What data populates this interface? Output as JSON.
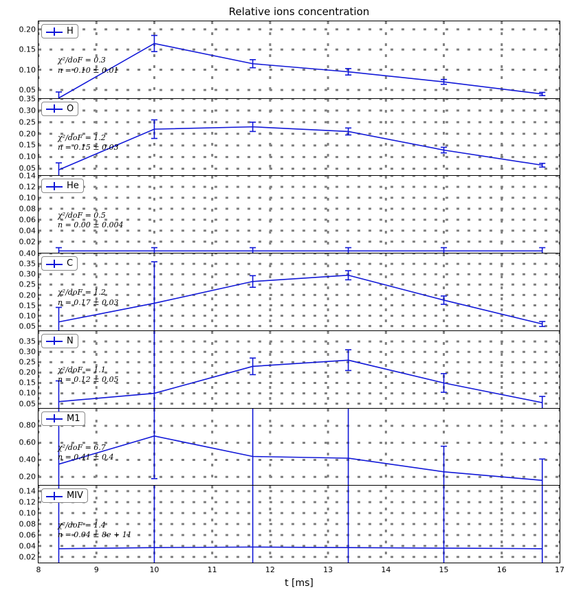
{
  "title": "Relative ions concentration",
  "title_fontsize": 15,
  "xaxis_label": "t [ms]",
  "xaxis_fontsize": 14,
  "font_family": "DejaVu Serif",
  "background_color": "#ffffff",
  "line_color": "#1118d8",
  "grid_color": "#808080",
  "grid_dash": "2 3",
  "line_width": 1.6,
  "xlim": [
    8,
    17
  ],
  "xticks": [
    8,
    9,
    10,
    11,
    12,
    13,
    14,
    15,
    16,
    17
  ],
  "x_values": [
    8.35,
    10.0,
    11.7,
    13.35,
    15.0,
    16.7
  ],
  "panels": [
    {
      "label": "H",
      "ylim": [
        0.03,
        0.22
      ],
      "yticks": [
        0.05,
        0.1,
        0.15,
        0.2
      ],
      "y": [
        0.03,
        0.165,
        0.115,
        0.095,
        0.07,
        0.04
      ],
      "yerr": [
        0.015,
        0.02,
        0.01,
        0.008,
        0.006,
        0.004
      ],
      "annot1": "χ²/doF = 0.3",
      "annot2": "n = 0.10 ± 0.01"
    },
    {
      "label": "O",
      "ylim": [
        0.02,
        0.35
      ],
      "yticks": [
        0.05,
        0.1,
        0.15,
        0.2,
        0.25,
        0.3,
        0.35
      ],
      "y": [
        0.045,
        0.22,
        0.23,
        0.21,
        0.13,
        0.065
      ],
      "yerr": [
        0.03,
        0.04,
        0.02,
        0.015,
        0.012,
        0.008
      ],
      "annot1": "χ²/doF = 1.2",
      "annot2": "n = 0.15 ± 0.03"
    },
    {
      "label": "He",
      "ylim": [
        0.0,
        0.14
      ],
      "yticks": [
        0.02,
        0.04,
        0.06,
        0.08,
        0.1,
        0.12,
        0.14
      ],
      "y": [
        0.003,
        0.003,
        0.003,
        0.003,
        0.003,
        0.003
      ],
      "yerr": [
        0.006,
        0.006,
        0.006,
        0.006,
        0.006,
        0.006
      ],
      "annot1": "χ²/doF = 0.5",
      "annot2": "n = 0.00 ± 0.004"
    },
    {
      "label": "C",
      "ylim": [
        0.03,
        0.4
      ],
      "yticks": [
        0.05,
        0.1,
        0.15,
        0.2,
        0.25,
        0.3,
        0.35,
        0.4
      ],
      "y": [
        0.07,
        0.16,
        0.265,
        0.295,
        0.175,
        0.06
      ],
      "yerr": [
        0.07,
        0.2,
        0.028,
        0.022,
        0.02,
        0.012
      ],
      "annot1": "χ²/doF = 1.2",
      "annot2": "n = 0.17 ± 0.03"
    },
    {
      "label": "N",
      "ylim": [
        0.03,
        0.4
      ],
      "yticks": [
        0.05,
        0.1,
        0.15,
        0.2,
        0.25,
        0.3,
        0.35
      ],
      "y": [
        0.06,
        0.1,
        0.23,
        0.26,
        0.15,
        0.055
      ],
      "yerr": [
        0.1,
        0.4,
        0.04,
        0.05,
        0.045,
        0.03
      ],
      "annot1": "χ²/doF = 1.1",
      "annot2": "n = 0.12 ± 0.05"
    },
    {
      "label": "M1",
      "ylim": [
        0.1,
        1.0
      ],
      "yticks": [
        0.2,
        0.4,
        0.6,
        0.8
      ],
      "y": [
        0.35,
        0.68,
        0.44,
        0.42,
        0.26,
        0.16
      ],
      "yerr": [
        1.0,
        0.5,
        1.0,
        1.0,
        0.3,
        0.25
      ],
      "annot1": "χ²/doF = 6.7",
      "annot2": "n = 0.41 ± 0.4"
    },
    {
      "label": "MIV",
      "ylim": [
        0.01,
        0.15
      ],
      "yticks": [
        0.02,
        0.04,
        0.06,
        0.08,
        0.1,
        0.12,
        0.14
      ],
      "y": [
        0.035,
        0.037,
        0.038,
        0.037,
        0.036,
        0.035
      ],
      "yerr": [
        0.2,
        0.2,
        0.2,
        0.2,
        0.2,
        0.2
      ],
      "annot1": "χ²/doF = 1.4",
      "annot2": "n = 0.04 ± 8e + 11"
    }
  ]
}
